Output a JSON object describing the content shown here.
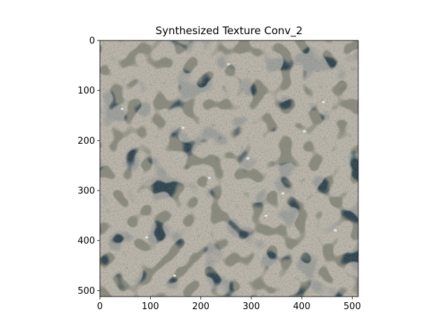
{
  "figure": {
    "title": "Synthesized Texture Conv_2",
    "image_width": 512,
    "image_height": 512,
    "x_ticks": [
      0,
      100,
      200,
      300,
      400,
      500
    ],
    "y_ticks": [
      0,
      100,
      200,
      300,
      400,
      500
    ],
    "colors": {
      "dark": "#1f3038",
      "mid": "#3c5560",
      "light": "#8d8b7e",
      "tan": "#a39380",
      "highlight": "#e8eef0"
    }
  }
}
